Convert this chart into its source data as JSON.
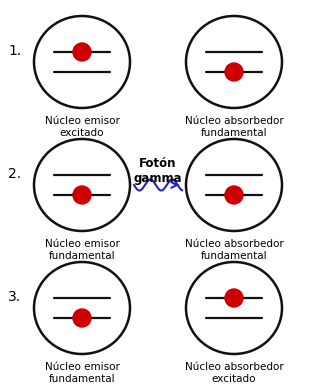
{
  "background": "#ffffff",
  "rows": [
    {
      "number": "1.",
      "left": {
        "label": "Núcleo emisor\nexcitado",
        "dot_on_upper": true
      },
      "right": {
        "label": "Núcleo absorbedor\nfundamental",
        "dot_on_upper": false
      },
      "has_arrow": false
    },
    {
      "number": "2.",
      "left": {
        "label": "Núcleo emisor\nfundamental",
        "dot_on_upper": false
      },
      "right": {
        "label": "Núcleo absorbedor\nfundamental",
        "dot_on_upper": false
      },
      "has_arrow": true,
      "arrow_label": "Fotón\ngamma"
    },
    {
      "number": "3.",
      "left": {
        "label": "Núcleo emisor\nfundamental",
        "dot_on_upper": false
      },
      "right": {
        "label": "Núcleo absorbedor\nexcitado",
        "dot_on_upper": true
      },
      "has_arrow": false
    }
  ],
  "dot_color": "#cc0000",
  "line_color": "#111111",
  "circle_edge_color": "#111111",
  "arrow_color": "#2222cc"
}
